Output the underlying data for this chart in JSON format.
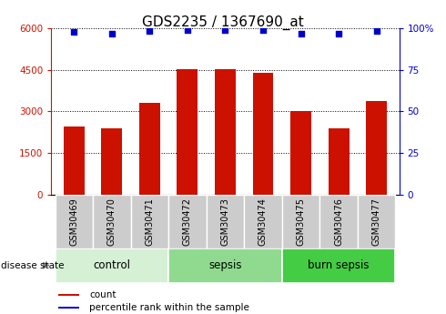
{
  "title": "GDS2235 / 1367690_at",
  "samples": [
    "GSM30469",
    "GSM30470",
    "GSM30471",
    "GSM30472",
    "GSM30473",
    "GSM30474",
    "GSM30475",
    "GSM30476",
    "GSM30477"
  ],
  "counts": [
    2450,
    2380,
    3300,
    4520,
    4530,
    4380,
    3000,
    2400,
    3380
  ],
  "percentile_ranks": [
    98,
    97,
    98.5,
    99,
    99,
    99,
    97,
    97,
    98.5
  ],
  "groups": [
    {
      "label": "control",
      "indices": [
        0,
        1,
        2
      ],
      "color": "#d5f0d5"
    },
    {
      "label": "sepsis",
      "indices": [
        3,
        4,
        5
      ],
      "color": "#8fda8f"
    },
    {
      "label": "burn sepsis",
      "indices": [
        6,
        7,
        8
      ],
      "color": "#44cc44"
    }
  ],
  "bar_color": "#cc1100",
  "dot_color": "#0000cc",
  "left_axis_color": "#cc1100",
  "right_axis_color": "#0000cc",
  "left_ylim": [
    0,
    6000
  ],
  "right_ylim": [
    0,
    100
  ],
  "left_yticks": [
    0,
    1500,
    3000,
    4500,
    6000
  ],
  "right_yticks": [
    0,
    25,
    50,
    75,
    100
  ],
  "right_yticklabels": [
    "0",
    "25",
    "50",
    "75",
    "100%"
  ],
  "legend_count_label": "count",
  "legend_percentile_label": "percentile rank within the sample",
  "disease_state_label": "disease state",
  "tick_area_color": "#cccccc",
  "title_fontsize": 11,
  "tick_fontsize": 7.5,
  "label_fontsize": 7,
  "group_fontsize": 8.5
}
